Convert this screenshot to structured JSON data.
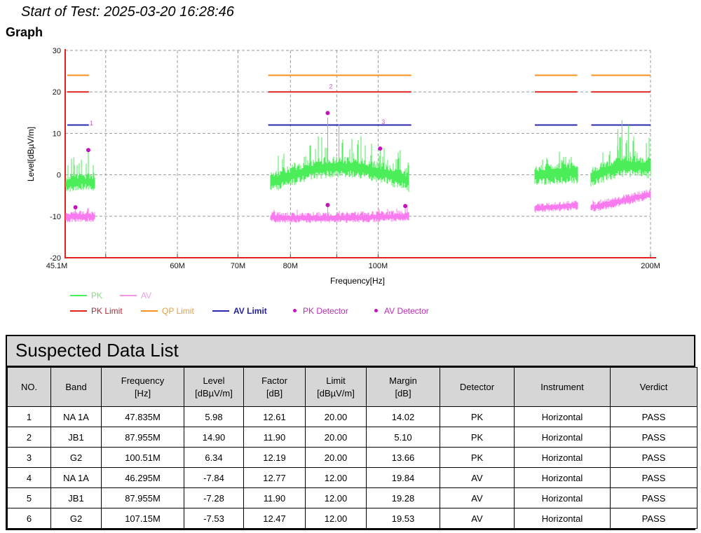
{
  "header": {
    "start_of_test": "Start of Test: 2025-03-20 16:28:46",
    "section_title": "Graph"
  },
  "legend": {
    "pk": "PK",
    "av": "AV",
    "pk_limit": "PK Limit",
    "qp_limit": "QP Limit",
    "av_limit": "AV Limit",
    "pk_detector": "PK Detector",
    "av_detector": "AV Detector"
  },
  "chart_data": {
    "type": "line",
    "title": "",
    "xlabel": "Frequency[Hz]",
    "ylabel": "Level[dBµV/m]",
    "x_scale": "log",
    "xlim_mhz": [
      45.1,
      200
    ],
    "ylim": [
      -20,
      30
    ],
    "x_ticks": [
      {
        "mhz": 45.1,
        "label": "45.1M",
        "grid": false,
        "dx": -12
      },
      {
        "mhz": 50,
        "label": "",
        "grid": true
      },
      {
        "mhz": 60,
        "label": "60M",
        "grid": true
      },
      {
        "mhz": 70,
        "label": "70M",
        "grid": true
      },
      {
        "mhz": 80,
        "label": "80M",
        "grid": true
      },
      {
        "mhz": 90,
        "label": "",
        "grid": true
      },
      {
        "mhz": 100,
        "label": "100M",
        "grid": true
      },
      {
        "mhz": 200,
        "label": "200M",
        "grid": true
      }
    ],
    "y_ticks": [
      30,
      20,
      10,
      0,
      -10,
      -20
    ],
    "limit_levels": {
      "pk": 20,
      "qp": 24,
      "av": 12
    },
    "limit_segments_mhz": [
      [
        45.35,
        47.9
      ],
      [
        75.6,
        108.8
      ],
      [
        149,
        166
      ],
      [
        172,
        200
      ]
    ],
    "colors": {
      "axis": "#E0231E",
      "grid": "#9A9A9A",
      "pk_limit": "#E3231E",
      "qp_limit": "#F5921E",
      "av_limit": "#2B27AE",
      "marker": "#C213BD",
      "marker_label": "#CC55CC"
    },
    "pk_trace": {
      "color": "#4BEE58",
      "segments": [
        {
          "f0": 45.2,
          "f1": 48.6,
          "b0": -2.2,
          "b1": -2.0,
          "hump": 0.6,
          "down": 2.2,
          "up": 2.0,
          "spike_p": 0.2,
          "spike_amp": 4.5,
          "seed": 7,
          "spikes": [
            {
              "mhz": 46.1,
              "top": 4.2
            },
            {
              "mhz": 47.0,
              "top": 3.6
            },
            {
              "mhz": 47.835,
              "top": 5.6
            }
          ]
        },
        {
          "f0": 76,
          "f1": 108,
          "b0": -1.8,
          "b1": -1.6,
          "hump": 3.6,
          "down": 2.6,
          "up": 2.6,
          "spike_p": 0.26,
          "spike_amp": 6.0,
          "seed": 11,
          "spikes": [
            {
              "mhz": 87.955,
              "top": 13.8
            },
            {
              "mhz": 90.5,
              "top": 12.2
            },
            {
              "mhz": 100.51,
              "top": 6.1
            }
          ]
        },
        {
          "f0": 149,
          "f1": 166,
          "b0": -0.2,
          "b1": 0.6,
          "hump": 0.3,
          "down": 2.8,
          "up": 2.4,
          "spike_p": 0.16,
          "spike_amp": 3.2,
          "seed": 13,
          "spikes": []
        },
        {
          "f0": 172,
          "f1": 200,
          "b0": -0.6,
          "b1": 1.8,
          "hump": 1.4,
          "down": 2.8,
          "up": 2.6,
          "spike_p": 0.22,
          "spike_amp": 5.5,
          "seed": 17,
          "spikes": [
            {
              "mhz": 184,
              "top": 11.0
            },
            {
              "mhz": 186,
              "top": 13.2
            },
            {
              "mhz": 189,
              "top": 12.0
            }
          ]
        }
      ]
    },
    "av_trace": {
      "color": "#F87AEE",
      "segments": [
        {
          "f0": 45.2,
          "f1": 48.6,
          "b0": -10.1,
          "b1": -10.0,
          "hump": 0,
          "down": 1.4,
          "up": 1.4,
          "spike_p": 0.06,
          "spike_amp": 1.4,
          "seed": 21,
          "spikes": [
            {
              "mhz": 46.295,
              "top": -8.2
            }
          ]
        },
        {
          "f0": 76,
          "f1": 108,
          "b0": -10.4,
          "b1": -10.0,
          "hump": -0.2,
          "down": 1.2,
          "up": 1.5,
          "spike_p": 0.07,
          "spike_amp": 1.6,
          "seed": 23,
          "spikes": [
            {
              "mhz": 87.955,
              "top": -7.7
            },
            {
              "mhz": 107.15,
              "top": -7.9
            }
          ]
        },
        {
          "f0": 149,
          "f1": 166,
          "b0": -8.1,
          "b1": -7.3,
          "hump": 0,
          "down": 1.2,
          "up": 1.2,
          "spike_p": 0.05,
          "spike_amp": 1.0,
          "seed": 27,
          "spikes": []
        },
        {
          "f0": 172,
          "f1": 200,
          "b0": -7.9,
          "b1": -4.7,
          "hump": 0,
          "down": 1.3,
          "up": 1.3,
          "spike_p": 0.05,
          "spike_amp": 1.0,
          "seed": 29,
          "spikes": []
        }
      ]
    },
    "pk_detector_points": [
      {
        "no": "1",
        "freq_mhz": 47.835,
        "level": 5.98
      },
      {
        "no": "2",
        "freq_mhz": 87.955,
        "level": 14.9
      },
      {
        "no": "3",
        "freq_mhz": 100.51,
        "level": 6.34
      }
    ],
    "av_detector_points": [
      {
        "freq_mhz": 46.295,
        "level": -7.84
      },
      {
        "freq_mhz": 87.955,
        "level": -7.28
      },
      {
        "freq_mhz": 107.15,
        "level": -7.53
      }
    ]
  },
  "table": {
    "title": "Suspected Data List",
    "columns": [
      {
        "l1": "NO.",
        "l2": ""
      },
      {
        "l1": "Band",
        "l2": ""
      },
      {
        "l1": "Frequency",
        "l2": "[Hz]"
      },
      {
        "l1": "Level",
        "l2": "[dBµV/m]"
      },
      {
        "l1": "Factor",
        "l2": "[dB]"
      },
      {
        "l1": "Limit",
        "l2": "[dBµV/m]"
      },
      {
        "l1": "Margin",
        "l2": "[dB]"
      },
      {
        "l1": "Detector",
        "l2": ""
      },
      {
        "l1": "Instrument",
        "l2": ""
      },
      {
        "l1": "Verdict",
        "l2": ""
      }
    ],
    "rows": [
      [
        "1",
        "NA 1A",
        "47.835M",
        "5.98",
        "12.61",
        "20.00",
        "14.02",
        "PK",
        "Horizontal",
        "PASS"
      ],
      [
        "2",
        "JB1",
        "87.955M",
        "14.90",
        "11.90",
        "20.00",
        "5.10",
        "PK",
        "Horizontal",
        "PASS"
      ],
      [
        "3",
        "G2",
        "100.51M",
        "6.34",
        "12.19",
        "20.00",
        "13.66",
        "PK",
        "Horizontal",
        "PASS"
      ],
      [
        "4",
        "NA 1A",
        "46.295M",
        "-7.84",
        "12.77",
        "12.00",
        "19.84",
        "AV",
        "Horizontal",
        "PASS"
      ],
      [
        "5",
        "JB1",
        "87.955M",
        "-7.28",
        "11.90",
        "12.00",
        "19.28",
        "AV",
        "Horizontal",
        "PASS"
      ],
      [
        "6",
        "G2",
        "107.15M",
        "-7.53",
        "12.47",
        "12.00",
        "19.53",
        "AV",
        "Horizontal",
        "PASS"
      ]
    ]
  }
}
